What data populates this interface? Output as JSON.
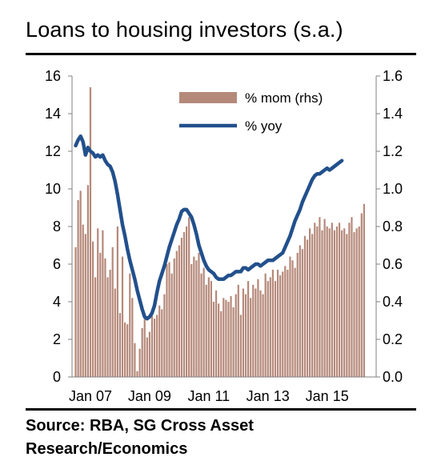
{
  "chart_data": {
    "type": "bar+line",
    "title": "Loans to housing investors (s.a.)",
    "x_tick_labels": [
      "Jan 07",
      "Jan 09",
      "Jan 11",
      "Jan 13",
      "Jan 15"
    ],
    "y_left": {
      "ticks": [
        0,
        2,
        4,
        6,
        8,
        10,
        12,
        14,
        16
      ],
      "ylim": [
        0,
        16
      ]
    },
    "y_right": {
      "ticks": [
        "0.0",
        "0.2",
        "0.4",
        "0.6",
        "0.8",
        "1.0",
        "1.2",
        "1.4",
        "1.6"
      ],
      "ylim": [
        0,
        1.6
      ]
    },
    "legend_placement": "top-right",
    "series": [
      {
        "name": "% mom (rhs)",
        "type": "bar",
        "axis": "right",
        "color": "#b5897a",
        "start": "2006-07",
        "values": [
          0.69,
          0.94,
          0.99,
          0.81,
          0.76,
          1.02,
          1.54,
          0.72,
          0.53,
          0.79,
          0.66,
          0.78,
          0.63,
          0.53,
          0.57,
          0.69,
          0.47,
          0.8,
          0.34,
          0.64,
          0.29,
          0.28,
          0.55,
          0.42,
          0.18,
          0.03,
          0.15,
          0.26,
          0.31,
          0.21,
          0.24,
          0.36,
          0.31,
          0.33,
          0.38,
          0.36,
          0.44,
          0.6,
          0.61,
          0.55,
          0.63,
          0.67,
          0.7,
          0.74,
          0.77,
          0.8,
          0.85,
          0.6,
          0.64,
          0.62,
          0.66,
          0.55,
          0.58,
          0.49,
          0.53,
          0.51,
          0.4,
          0.46,
          0.39,
          0.35,
          0.42,
          0.41,
          0.4,
          0.43,
          0.37,
          0.44,
          0.49,
          0.33,
          0.47,
          0.44,
          0.51,
          0.42,
          0.49,
          0.47,
          0.52,
          0.46,
          0.44,
          0.55,
          0.51,
          0.53,
          0.57,
          0.51,
          0.57,
          0.54,
          0.56,
          0.59,
          0.57,
          0.64,
          0.62,
          0.58,
          0.66,
          0.7,
          0.68,
          0.75,
          0.73,
          0.79,
          0.76,
          0.82,
          0.8,
          0.85,
          0.78,
          0.84,
          0.8,
          0.79,
          0.82,
          0.78,
          0.8,
          0.82,
          0.78,
          0.79,
          0.76,
          0.82,
          0.85,
          0.77,
          0.79,
          0.8,
          0.87,
          0.92
        ]
      },
      {
        "name": "% yoy",
        "type": "line",
        "axis": "left",
        "color": "#22508c",
        "start": "2006-07",
        "values": [
          12.3,
          12.6,
          12.8,
          12.5,
          11.8,
          12.2,
          12.0,
          11.9,
          11.7,
          11.8,
          11.7,
          11.8,
          11.5,
          11.3,
          11.2,
          10.9,
          10.4,
          9.7,
          8.9,
          8.1,
          7.5,
          6.8,
          6.2,
          5.7,
          5.2,
          4.6,
          4.1,
          3.6,
          3.2,
          3.1,
          3.2,
          3.4,
          3.8,
          4.5,
          5.1,
          5.5,
          5.9,
          6.4,
          6.9,
          7.3,
          7.7,
          8.1,
          8.4,
          8.8,
          8.9,
          8.9,
          8.7,
          8.5,
          8.1,
          7.6,
          7.0,
          6.6,
          6.2,
          5.9,
          5.7,
          5.6,
          5.5,
          5.3,
          5.2,
          5.2,
          5.2,
          5.3,
          5.4,
          5.4,
          5.5,
          5.6,
          5.6,
          5.6,
          5.8,
          5.8,
          5.7,
          5.8,
          5.9,
          6.0,
          6.0,
          5.9,
          6.0,
          6.1,
          6.2,
          6.2,
          6.2,
          6.3,
          6.4,
          6.5,
          6.6,
          6.9,
          7.2,
          7.5,
          7.9,
          8.3,
          8.6,
          8.9,
          9.3,
          9.6,
          9.9,
          10.2,
          10.5,
          10.7,
          10.8,
          10.8,
          10.9,
          11.0,
          11.1,
          11.0,
          11.1,
          11.2,
          11.3,
          11.4,
          11.5
        ]
      }
    ]
  },
  "source_lines": [
    "Source: RBA, SG Cross Asset",
    "Research/Economics"
  ],
  "colors": {
    "bars": "#b5897a",
    "line": "#22508c",
    "axis": "#808080"
  }
}
